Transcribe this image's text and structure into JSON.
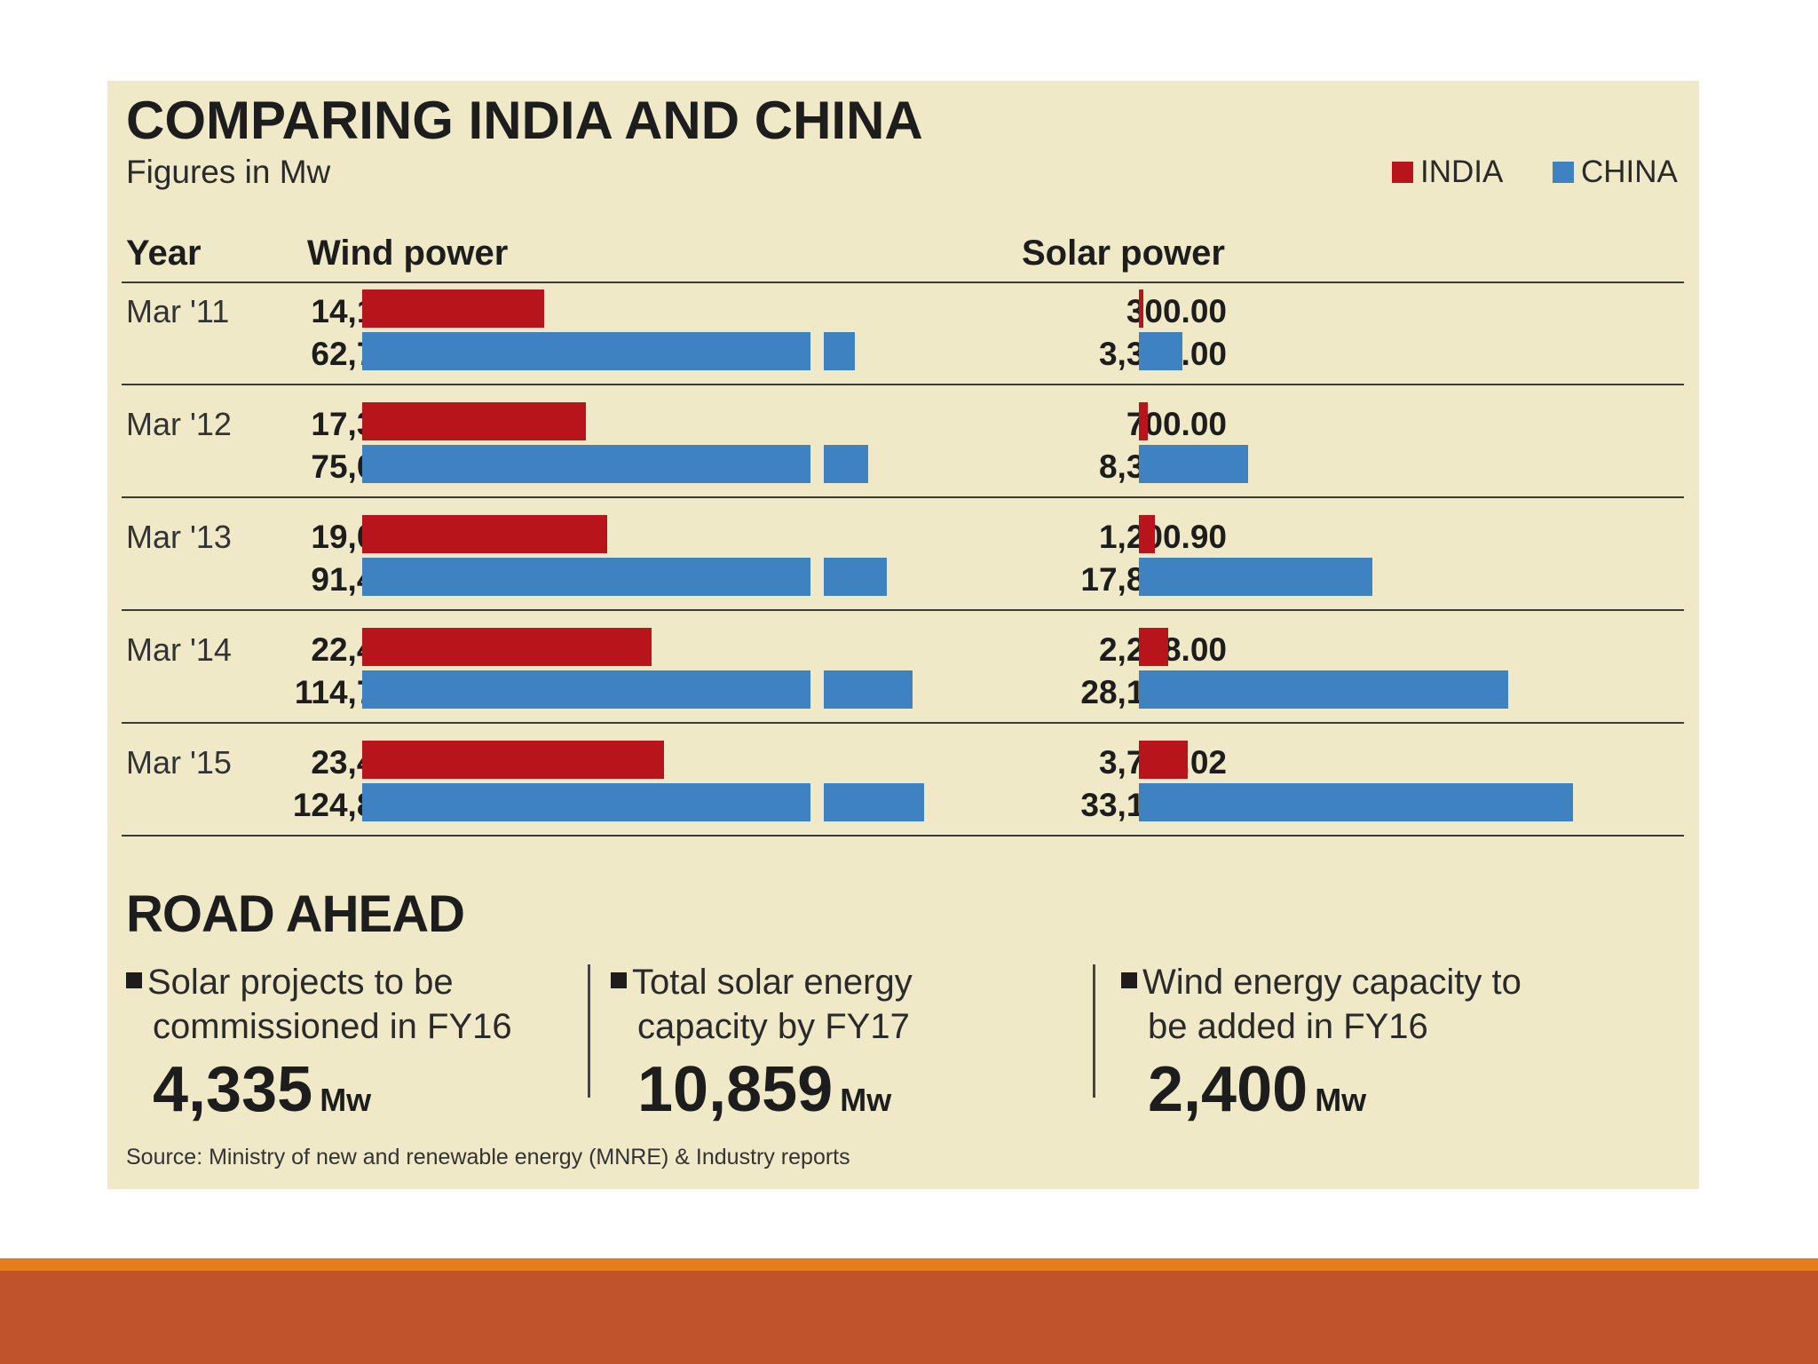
{
  "chart_data": {
    "type": "bar",
    "title": "COMPARING INDIA AND CHINA",
    "subtitle": "Figures in Mw",
    "legend": [
      "INDIA",
      "CHINA"
    ],
    "legend_position": "top-right",
    "colors": {
      "INDIA": "#b8141b",
      "CHINA": "#3e82c2"
    },
    "columns": {
      "year": "Year",
      "wind": "Wind  power",
      "solar": "Solar power"
    },
    "categories": [
      "Mar '11",
      "Mar '12",
      "Mar '13",
      "Mar '14",
      "Mar '15"
    ],
    "wind": {
      "series": [
        {
          "name": "INDIA",
          "values": [
            14155.0,
            17352.0,
            19050.9,
            22465.0,
            23444.0
          ],
          "labels": [
            "14,155.00",
            "17,352.00",
            "19,050.90",
            "22,465.00",
            "23,444.00"
          ]
        },
        {
          "name": "CHINA",
          "values": [
            62700.0,
            75000.0,
            91424.0,
            114763.0,
            124800.0
          ],
          "labels": [
            "62,700.00",
            "75,000.00",
            "91,424.00",
            "114,763.00",
            "124,800.00"
          ]
        }
      ],
      "axis_break": true
    },
    "solar": {
      "series": [
        {
          "name": "INDIA",
          "values": [
            300.0,
            700.0,
            1200.9,
            2208.0,
            3752.02
          ],
          "labels": [
            "300.00",
            "700.00",
            "1,200.90",
            "2,208.00",
            "3,752.02"
          ]
        },
        {
          "name": "CHINA",
          "values": [
            3300.0,
            8300.0,
            17800.0,
            28199.0,
            33120.0
          ],
          "labels": [
            "3,300.00",
            "8,300.00",
            "17,800.00",
            "28,199.00",
            "33,120.00"
          ]
        }
      ]
    }
  },
  "road_ahead": {
    "title": "ROAD AHEAD",
    "items": [
      {
        "line1": "Solar projects to be",
        "line2": "commissioned in FY16",
        "value": "4,335",
        "unit": "Mw"
      },
      {
        "line1": "Total solar energy",
        "line2": "capacity by FY17",
        "value": "10,859",
        "unit": "Mw"
      },
      {
        "line1": "Wind energy capacity to",
        "line2": "be added in FY16",
        "value": "2,400",
        "unit": "Mw"
      }
    ]
  },
  "source": "Source: Ministry of new and renewable energy (MNRE) & Industry reports"
}
